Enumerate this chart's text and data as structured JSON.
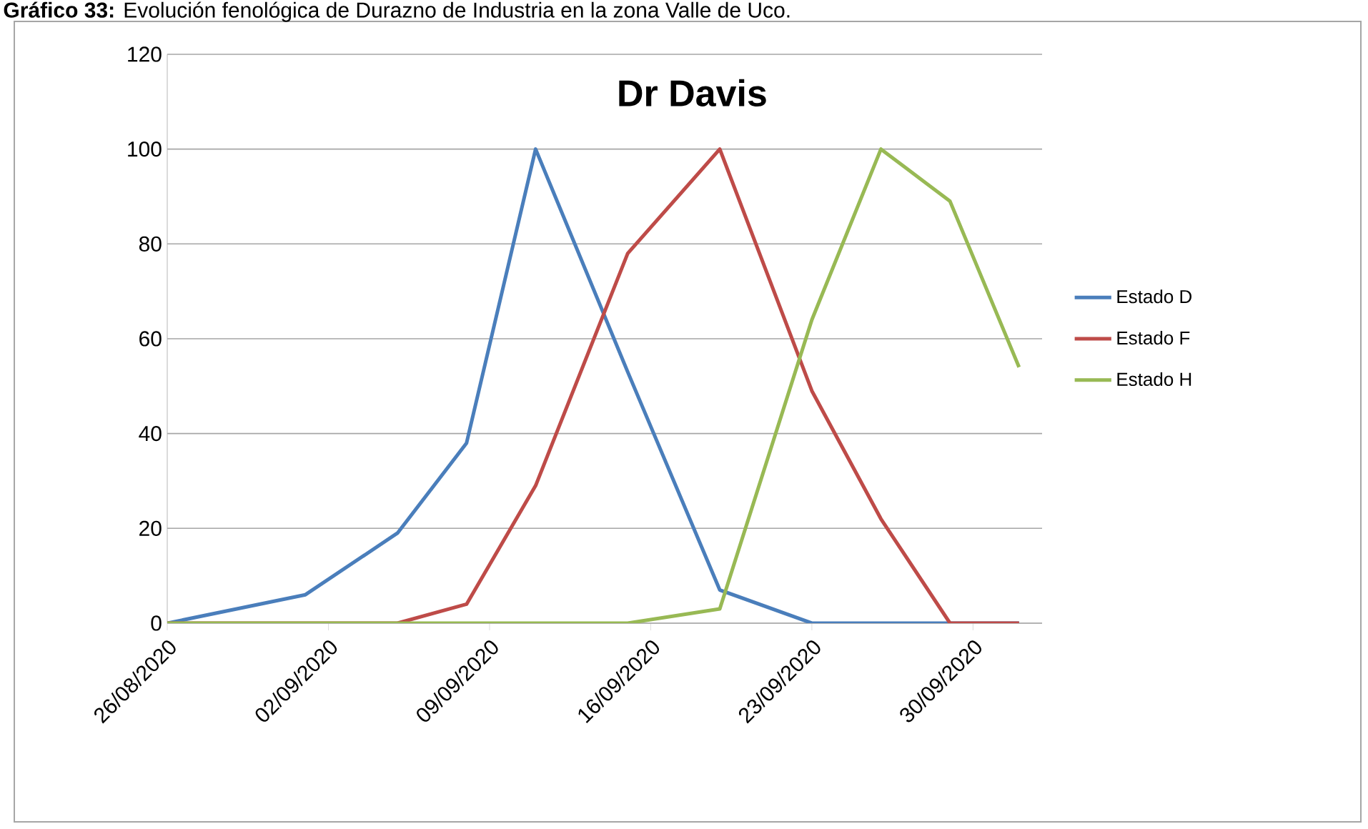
{
  "chart_data": {
    "type": "line",
    "title": "Dr Davis",
    "annotations": [
      "**Gráfico 33:** Evolución fenológica de Durazno de Industria en la zona Valle de Uco."
    ],
    "x": [
      "2020-08-26",
      "2020-09-01",
      "2020-09-05",
      "2020-09-08",
      "2020-09-11",
      "2020-09-15",
      "2020-09-19",
      "2020-09-23",
      "2020-09-26",
      "2020-09-29",
      "2020-10-02"
    ],
    "series": [
      {
        "name": "Estado D",
        "color": "#4a7ebb",
        "values": [
          0,
          6,
          19,
          38,
          100,
          53,
          7,
          0,
          0,
          0,
          0
        ]
      },
      {
        "name": "Estado F",
        "color": "#be4b48",
        "values": [
          0,
          0,
          0,
          4,
          29,
          78,
          100,
          49,
          22,
          0,
          0
        ]
      },
      {
        "name": "Estado H",
        "color": "#98b954",
        "values": [
          0,
          0,
          0,
          0,
          0,
          0,
          3,
          64,
          100,
          89,
          54
        ]
      }
    ],
    "xlim": [
      "2020-08-26",
      "2020-10-03"
    ],
    "xticks": [
      {
        "value": "2020-08-26",
        "label": "26/08/2020"
      },
      {
        "value": "2020-09-02",
        "label": "02/09/2020"
      },
      {
        "value": "2020-09-09",
        "label": "09/09/2020"
      },
      {
        "value": "2020-09-16",
        "label": "16/09/2020"
      },
      {
        "value": "2020-09-23",
        "label": "23/09/2020"
      },
      {
        "value": "2020-09-30",
        "label": "30/09/2020"
      }
    ],
    "ylim": [
      0,
      120
    ],
    "yticks": [
      0,
      20,
      40,
      60,
      80,
      100,
      120
    ],
    "grid": "y",
    "legend": "right",
    "marker": "none",
    "line_style": "solid"
  }
}
